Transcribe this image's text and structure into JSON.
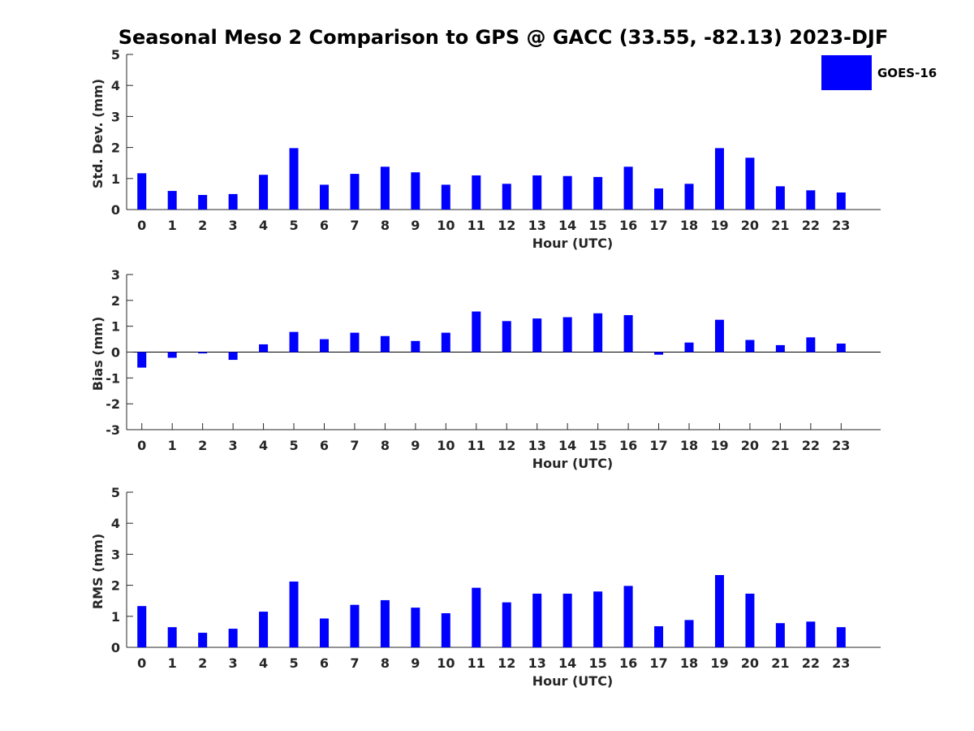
{
  "figure": {
    "title": "Seasonal Meso 2 Comparison to GPS @ GACC (33.55, -82.13) 2023-DJF"
  },
  "legend": {
    "label": "GOES-16",
    "color": "#0000ff"
  },
  "chart_data": [
    {
      "type": "bar",
      "name": "std-dev",
      "xlabel": "Hour (UTC)",
      "ylabel": "Std. Dev. (mm)",
      "ylim": [
        0,
        5
      ],
      "yticks": [
        0,
        1,
        2,
        3,
        4,
        5
      ],
      "categories": [
        "0",
        "1",
        "2",
        "3",
        "4",
        "5",
        "6",
        "7",
        "8",
        "9",
        "10",
        "11",
        "12",
        "13",
        "14",
        "15",
        "16",
        "17",
        "18",
        "19",
        "20",
        "21",
        "22",
        "23"
      ],
      "series": [
        {
          "name": "GOES-16",
          "color": "#0000ff",
          "values": [
            1.17,
            0.6,
            0.47,
            0.5,
            1.12,
            1.98,
            0.8,
            1.15,
            1.38,
            1.2,
            0.8,
            1.1,
            0.83,
            1.1,
            1.08,
            1.05,
            1.38,
            0.68,
            0.83,
            1.98,
            1.67,
            0.75,
            0.62,
            0.55
          ]
        }
      ]
    },
    {
      "type": "bar",
      "name": "bias",
      "xlabel": "Hour (UTC)",
      "ylabel": "Bias (mm)",
      "ylim": [
        -3,
        3
      ],
      "yticks": [
        -3,
        -2,
        -1,
        0,
        1,
        2,
        3
      ],
      "categories": [
        "0",
        "1",
        "2",
        "3",
        "4",
        "5",
        "6",
        "7",
        "8",
        "9",
        "10",
        "11",
        "12",
        "13",
        "14",
        "15",
        "16",
        "17",
        "18",
        "19",
        "20",
        "21",
        "22",
        "23"
      ],
      "series": [
        {
          "name": "GOES-16",
          "color": "#0000ff",
          "values": [
            -0.6,
            -0.22,
            -0.05,
            -0.3,
            0.3,
            0.78,
            0.5,
            0.75,
            0.62,
            0.43,
            0.75,
            1.57,
            1.2,
            1.3,
            1.35,
            1.5,
            1.43,
            -0.1,
            0.37,
            1.25,
            0.47,
            0.27,
            0.57,
            0.33
          ]
        }
      ]
    },
    {
      "type": "bar",
      "name": "rms",
      "xlabel": "Hour (UTC)",
      "ylabel": "RMS (mm)",
      "ylim": [
        0,
        5
      ],
      "yticks": [
        0,
        1,
        2,
        3,
        4,
        5
      ],
      "categories": [
        "0",
        "1",
        "2",
        "3",
        "4",
        "5",
        "6",
        "7",
        "8",
        "9",
        "10",
        "11",
        "12",
        "13",
        "14",
        "15",
        "16",
        "17",
        "18",
        "19",
        "20",
        "21",
        "22",
        "23"
      ],
      "series": [
        {
          "name": "GOES-16",
          "color": "#0000ff",
          "values": [
            1.33,
            0.65,
            0.47,
            0.6,
            1.15,
            2.12,
            0.93,
            1.37,
            1.52,
            1.28,
            1.1,
            1.92,
            1.45,
            1.73,
            1.73,
            1.8,
            1.98,
            0.68,
            0.88,
            2.33,
            1.73,
            0.78,
            0.83,
            0.65
          ]
        }
      ]
    }
  ]
}
